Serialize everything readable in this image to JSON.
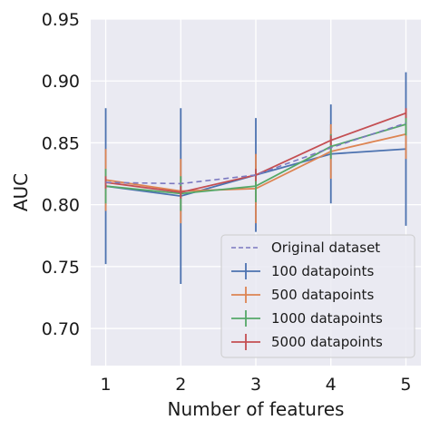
{
  "chart_data": {
    "type": "line",
    "xlabel": "Number of features",
    "ylabel": "AUC",
    "x": [
      1,
      2,
      3,
      4,
      5
    ],
    "xlim": [
      0.8,
      5.2
    ],
    "ylim": [
      0.67,
      0.95
    ],
    "xticks": [
      "1",
      "2",
      "3",
      "4",
      "5"
    ],
    "yticks": [
      "0.70",
      "0.75",
      "0.80",
      "0.85",
      "0.90",
      "0.95"
    ],
    "grid": true,
    "legend_position": "lower-right",
    "background": "#eaeaf2",
    "reference": {
      "name": "Original dataset",
      "style": "dashed",
      "color": "#7b78c0",
      "values": [
        0.818,
        0.817,
        0.824,
        0.846,
        0.866
      ]
    },
    "series": [
      {
        "name": "100 datapoints",
        "color": "#4c72b0",
        "values": [
          0.815,
          0.807,
          0.824,
          0.841,
          0.845
        ],
        "err": [
          0.063,
          0.071,
          0.046,
          0.04,
          0.062
        ]
      },
      {
        "name": "500 datapoints",
        "color": "#dd8452",
        "values": [
          0.82,
          0.811,
          0.813,
          0.843,
          0.857
        ],
        "err": [
          0.025,
          0.026,
          0.028,
          0.022,
          0.02
        ]
      },
      {
        "name": "1000 datapoints",
        "color": "#55a868",
        "values": [
          0.815,
          0.809,
          0.815,
          0.847,
          0.865
        ],
        "err": [
          0.014,
          0.014,
          0.013,
          0.01,
          0.009
        ]
      },
      {
        "name": "5000 datapoints",
        "color": "#c44e52",
        "values": [
          0.818,
          0.81,
          0.824,
          0.852,
          0.874
        ],
        "err": [
          0.005,
          0.005,
          0.005,
          0.004,
          0.004
        ]
      }
    ]
  }
}
